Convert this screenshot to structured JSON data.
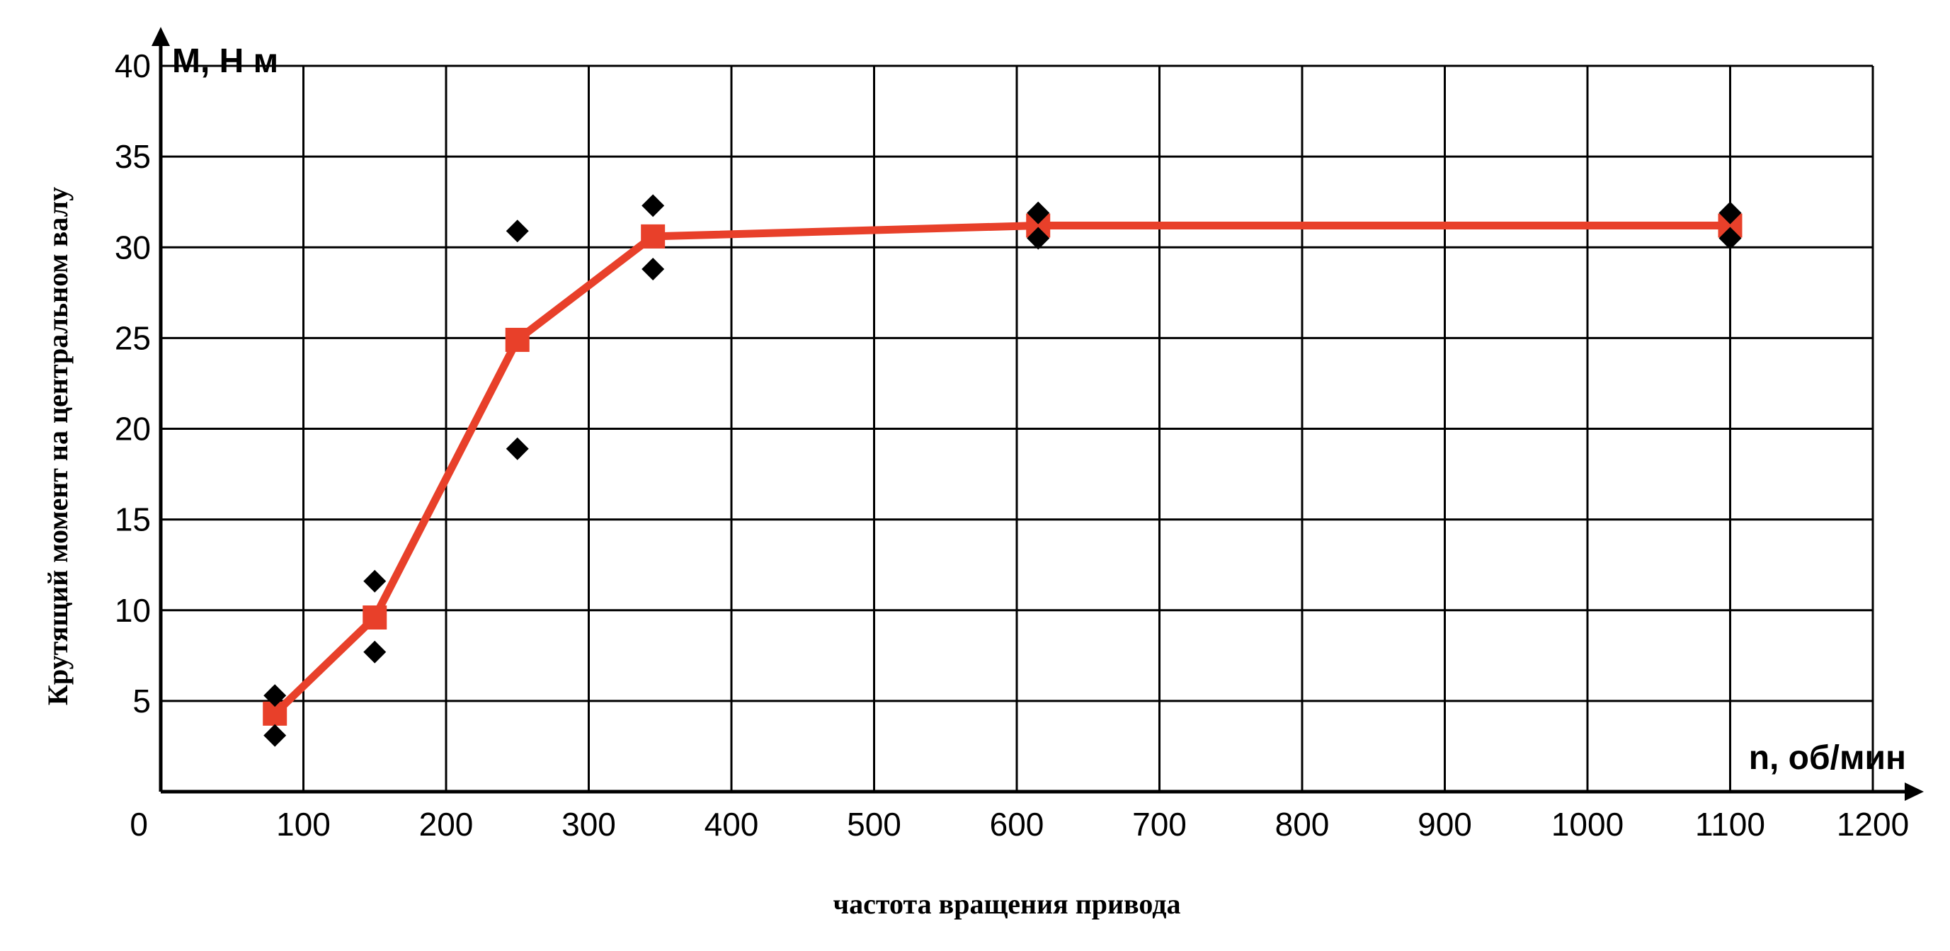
{
  "chart_data": {
    "type": "line",
    "title": "",
    "xlabel": "частота вращения привода",
    "ylabel": "Крутящий момент на центральном валу",
    "x_axis_unit": "n, об/мин",
    "y_axis_unit": "M, Н м",
    "xlim": [
      0,
      1200
    ],
    "ylim": [
      0,
      40
    ],
    "x_ticks": [
      0,
      100,
      200,
      300,
      400,
      500,
      600,
      700,
      800,
      900,
      1000,
      1100,
      1200
    ],
    "y_ticks": [
      5,
      10,
      15,
      20,
      25,
      30,
      35,
      40
    ],
    "grid": true,
    "series": [
      {
        "marker": "square",
        "color": "#e8402a",
        "x": [
          80,
          150,
          250,
          345,
          615,
          1100
        ],
        "y": [
          4.3,
          9.6,
          24.9,
          30.6,
          31.2,
          31.2
        ]
      },
      {
        "marker": "diamond",
        "color": "#000000",
        "x": [
          80,
          80,
          150,
          150,
          250,
          250,
          345,
          345,
          615,
          615,
          1100,
          1100
        ],
        "y": [
          5.3,
          3.1,
          11.6,
          7.7,
          30.9,
          18.9,
          32.3,
          28.8,
          31.9,
          30.5,
          31.9,
          30.5
        ]
      }
    ]
  }
}
